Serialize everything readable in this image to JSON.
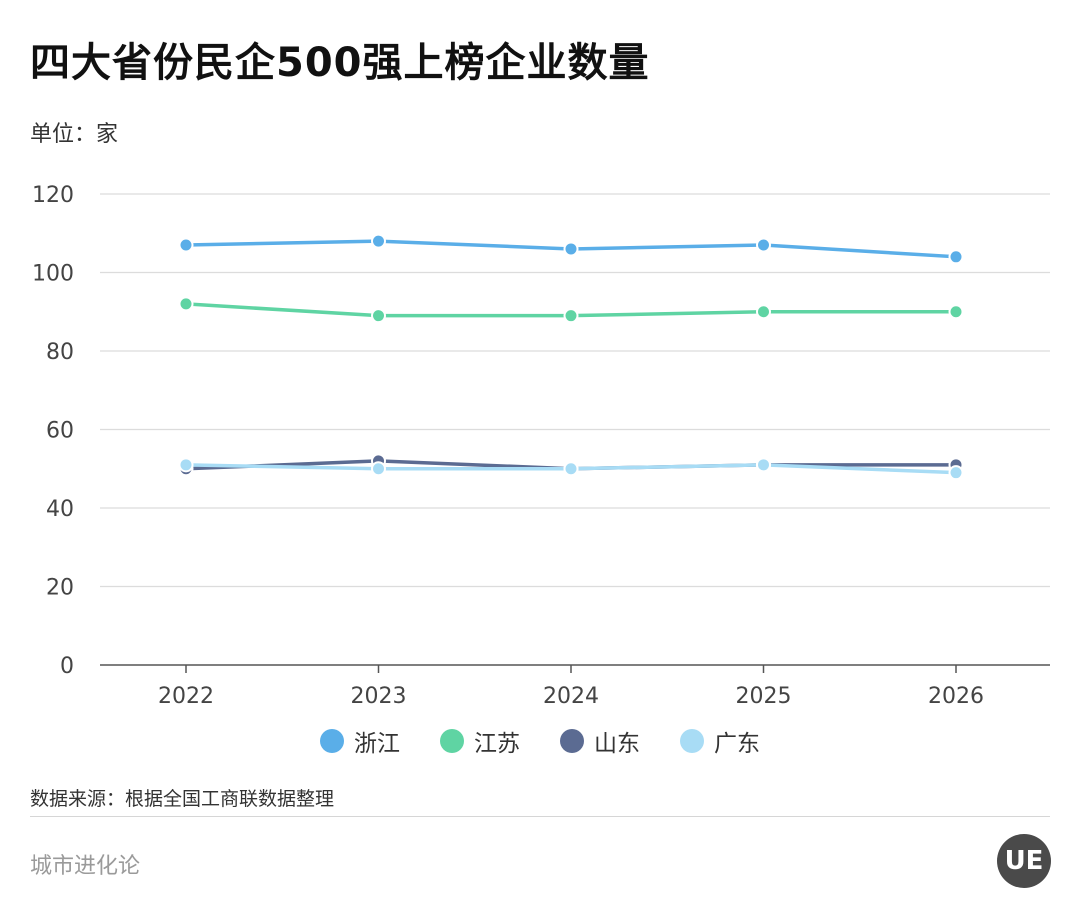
{
  "header": {
    "title": "四大省份民企500强上榜企业数量",
    "unit_label": "单位：家"
  },
  "footer": {
    "source": "数据来源：根据全国工商联数据整理",
    "brand": "城市进化论"
  },
  "chart_data": {
    "type": "line",
    "x": [
      "2022",
      "2023",
      "2024",
      "2025",
      "2026"
    ],
    "series": [
      {
        "name": "浙江",
        "color": "#5aaee8",
        "values": [
          107,
          108,
          106,
          107,
          104
        ]
      },
      {
        "name": "江苏",
        "color": "#5fd4a3",
        "values": [
          92,
          89,
          89,
          90,
          90
        ]
      },
      {
        "name": "山东",
        "color": "#5b6b92",
        "values": [
          50,
          52,
          50,
          51,
          51
        ]
      },
      {
        "name": "广东",
        "color": "#a8dcf5",
        "values": [
          51,
          50,
          50,
          51,
          49
        ]
      }
    ],
    "ylim": [
      0,
      120
    ],
    "yticks": [
      0,
      20,
      40,
      60,
      80,
      100,
      120
    ],
    "grid": true,
    "legend_position": "bottom-center"
  }
}
